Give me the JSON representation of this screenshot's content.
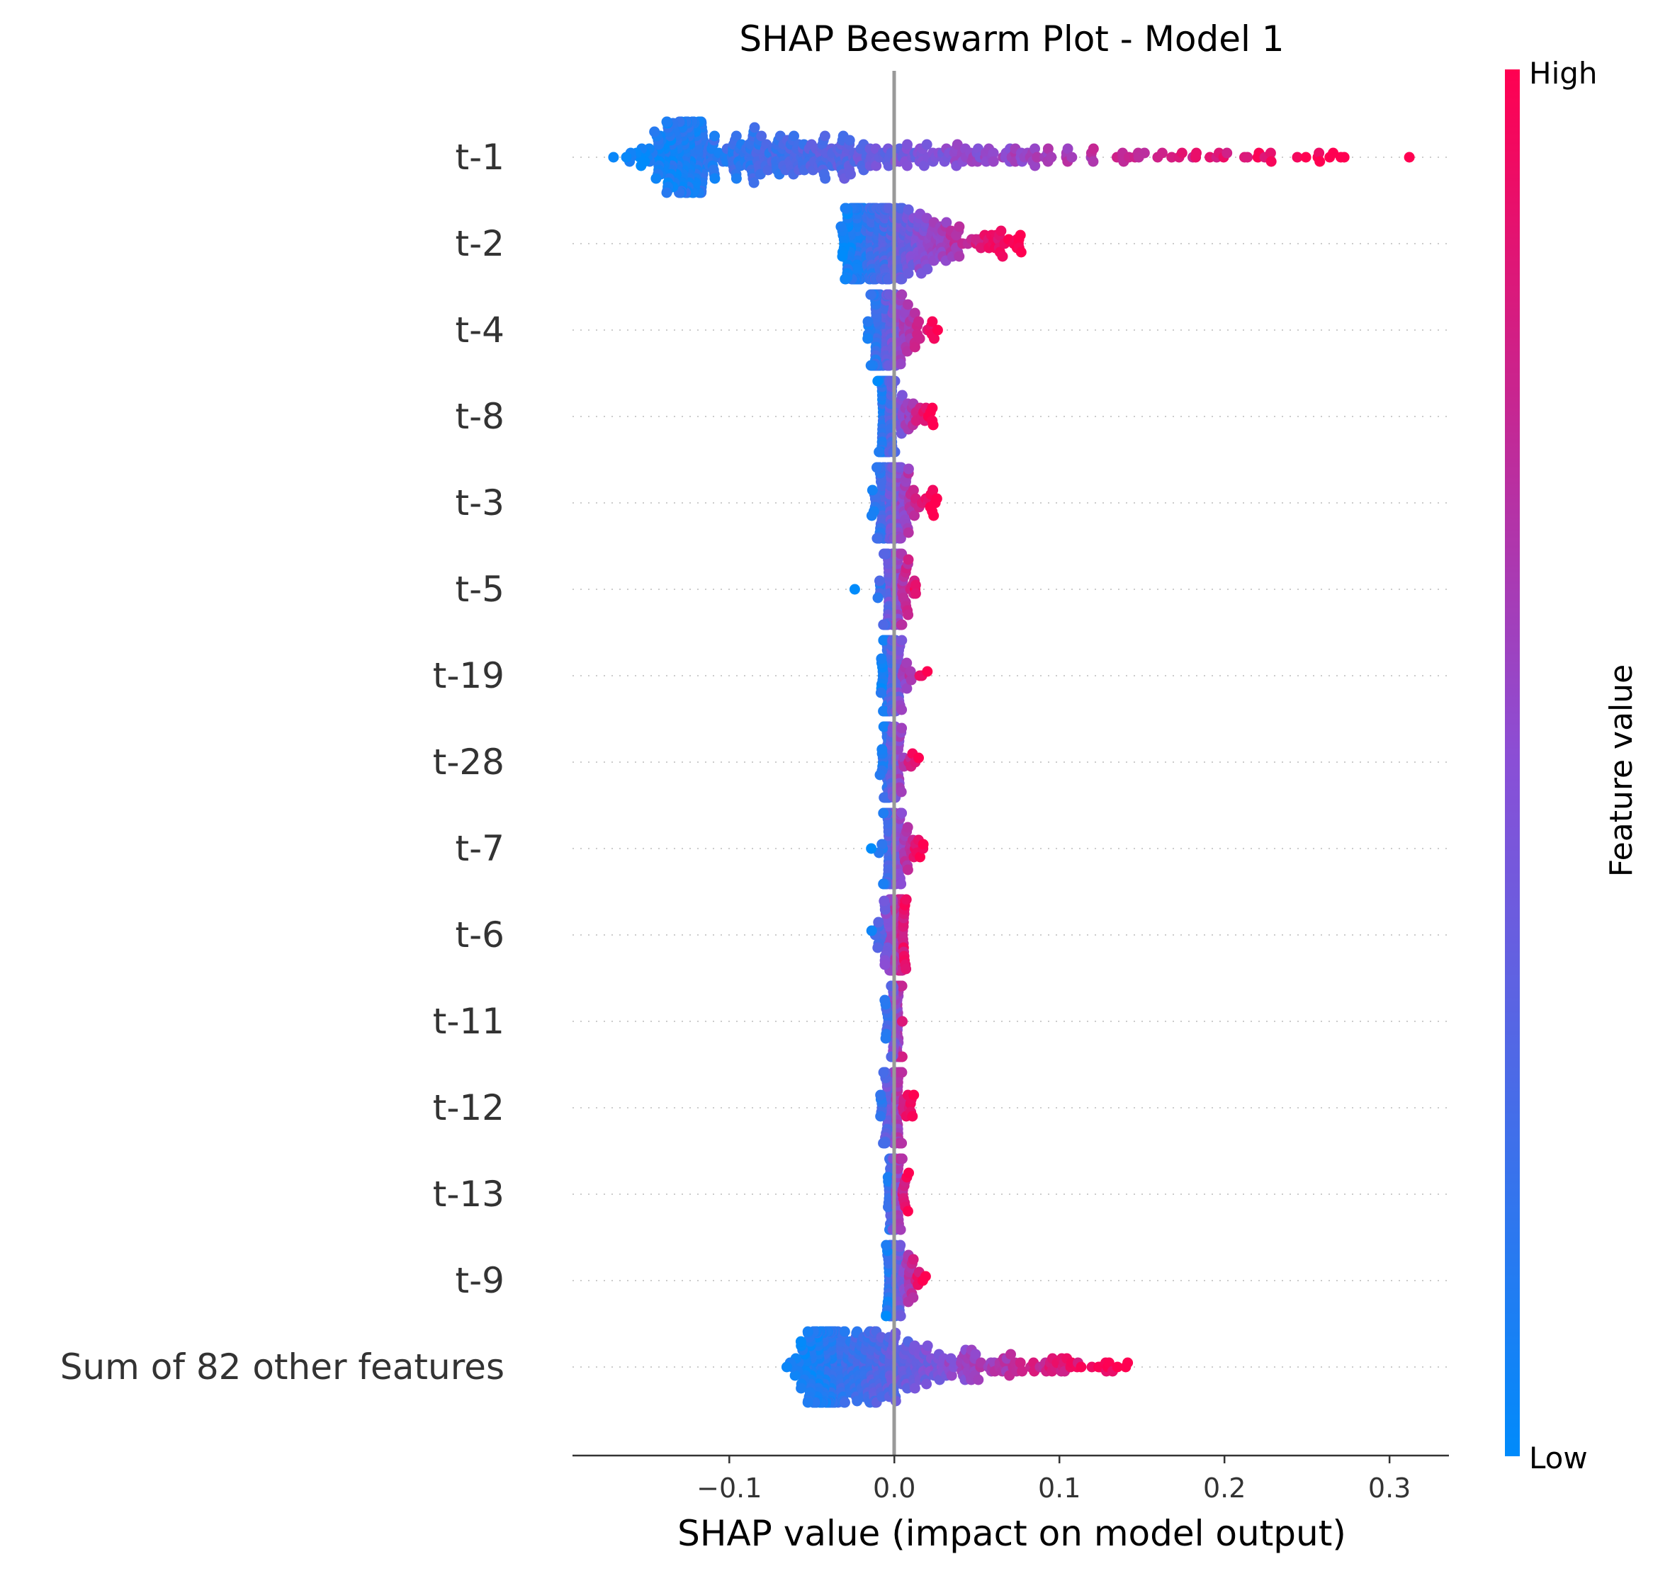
{
  "chart_data": {
    "type": "scatter",
    "subtype": "shap-beeswarm",
    "title": "SHAP Beeswarm Plot - Model 1",
    "xlabel": "SHAP value (impact on model output)",
    "ylabel": "",
    "xlim": [
      -0.195,
      0.336
    ],
    "xticks": [
      -0.1,
      0.0,
      0.1,
      0.2,
      0.3
    ],
    "xtick_labels": [
      "−0.1",
      "0.0",
      "0.1",
      "0.2",
      "0.3"
    ],
    "grid": false,
    "zero_line": true,
    "colorbar": {
      "label": "Feature value",
      "high_label": "High",
      "low_label": "Low",
      "low_color": "#008bfb",
      "mid_color": "#8a4fd6",
      "high_color": "#ff0051"
    },
    "features": [
      {
        "name": "t-1",
        "min": -0.172,
        "max": 0.275,
        "center": -0.115,
        "outliers": [
          0.312
        ]
      },
      {
        "name": "t-2",
        "min": -0.035,
        "max": 0.077,
        "center": -0.02,
        "outliers": []
      },
      {
        "name": "t-4",
        "min": -0.02,
        "max": 0.027,
        "center": -0.008,
        "outliers": []
      },
      {
        "name": "t-8",
        "min": -0.012,
        "max": 0.024,
        "center": -0.006,
        "outliers": []
      },
      {
        "name": "t-3",
        "min": -0.018,
        "max": 0.026,
        "center": -0.005,
        "outliers": []
      },
      {
        "name": "t-5",
        "min": -0.015,
        "max": 0.017,
        "center": -0.002,
        "outliers": [
          -0.024
        ]
      },
      {
        "name": "t-19",
        "min": -0.01,
        "max": 0.02,
        "center": -0.004,
        "outliers": []
      },
      {
        "name": "t-28",
        "min": -0.01,
        "max": 0.015,
        "center": -0.004,
        "outliers": []
      },
      {
        "name": "t-7",
        "min": -0.012,
        "max": 0.018,
        "center": -0.002,
        "outliers": [
          -0.014
        ]
      },
      {
        "name": "t-6",
        "min": -0.017,
        "max": 0.01,
        "center": 0.002,
        "outliers": []
      },
      {
        "name": "t-11",
        "min": -0.008,
        "max": 0.009,
        "center": 0.002,
        "outliers": []
      },
      {
        "name": "t-12",
        "min": -0.013,
        "max": 0.012,
        "center": -0.002,
        "outliers": []
      },
      {
        "name": "t-13",
        "min": -0.006,
        "max": 0.009,
        "center": -0.002,
        "outliers": []
      },
      {
        "name": "t-9",
        "min": -0.007,
        "max": 0.019,
        "center": -0.002,
        "outliers": []
      },
      {
        "name": "Sum of 82 other features",
        "min": -0.068,
        "max": 0.143,
        "center": -0.035,
        "outliers": []
      }
    ]
  }
}
